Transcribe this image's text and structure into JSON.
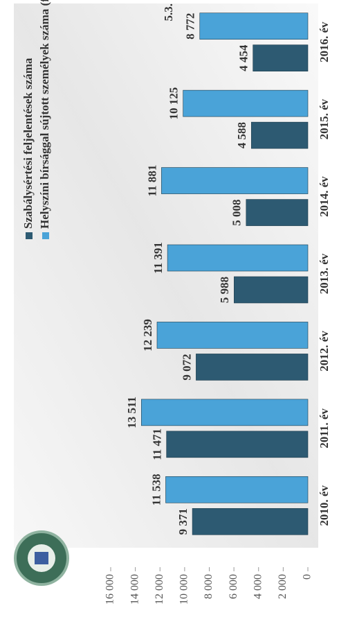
{
  "header": "5.3.",
  "chart_data": {
    "type": "bar",
    "categories": [
      "2010. év",
      "2011. év",
      "2012. év",
      "2013. év",
      "2014. év",
      "2015. év",
      "2016. év"
    ],
    "series": [
      {
        "name": "Szabálysértési feljelentések száma",
        "color": "#2d5a72",
        "values": [
          9371,
          11471,
          9072,
          5988,
          5008,
          4588,
          4454
        ],
        "value_labels": [
          "9 371",
          "11 471",
          "9 072",
          "5 988",
          "5 008",
          "4 588",
          "4 454"
        ]
      },
      {
        "name": "Helyszíni bírsággal sújtott személyek száma (fő)",
        "color": "#4aa3d8",
        "values": [
          11538,
          13511,
          12239,
          11391,
          11881,
          10125,
          8772
        ],
        "value_labels": [
          "11 538",
          "13 511",
          "12 239",
          "11 391",
          "11 881",
          "10 125",
          "8 772"
        ]
      }
    ],
    "ylim": [
      0,
      16000
    ],
    "yticks": [
      {
        "value": 0,
        "label": "0"
      },
      {
        "value": 2000,
        "label": "2 000"
      },
      {
        "value": 4000,
        "label": "4 000"
      },
      {
        "value": 6000,
        "label": "6 000"
      },
      {
        "value": 8000,
        "label": "8 000"
      },
      {
        "value": 10000,
        "label": "10 000"
      },
      {
        "value": 12000,
        "label": "12 000"
      },
      {
        "value": 14000,
        "label": "14 000"
      },
      {
        "value": 16000,
        "label": "16 000"
      }
    ],
    "legend": "top-left"
  }
}
